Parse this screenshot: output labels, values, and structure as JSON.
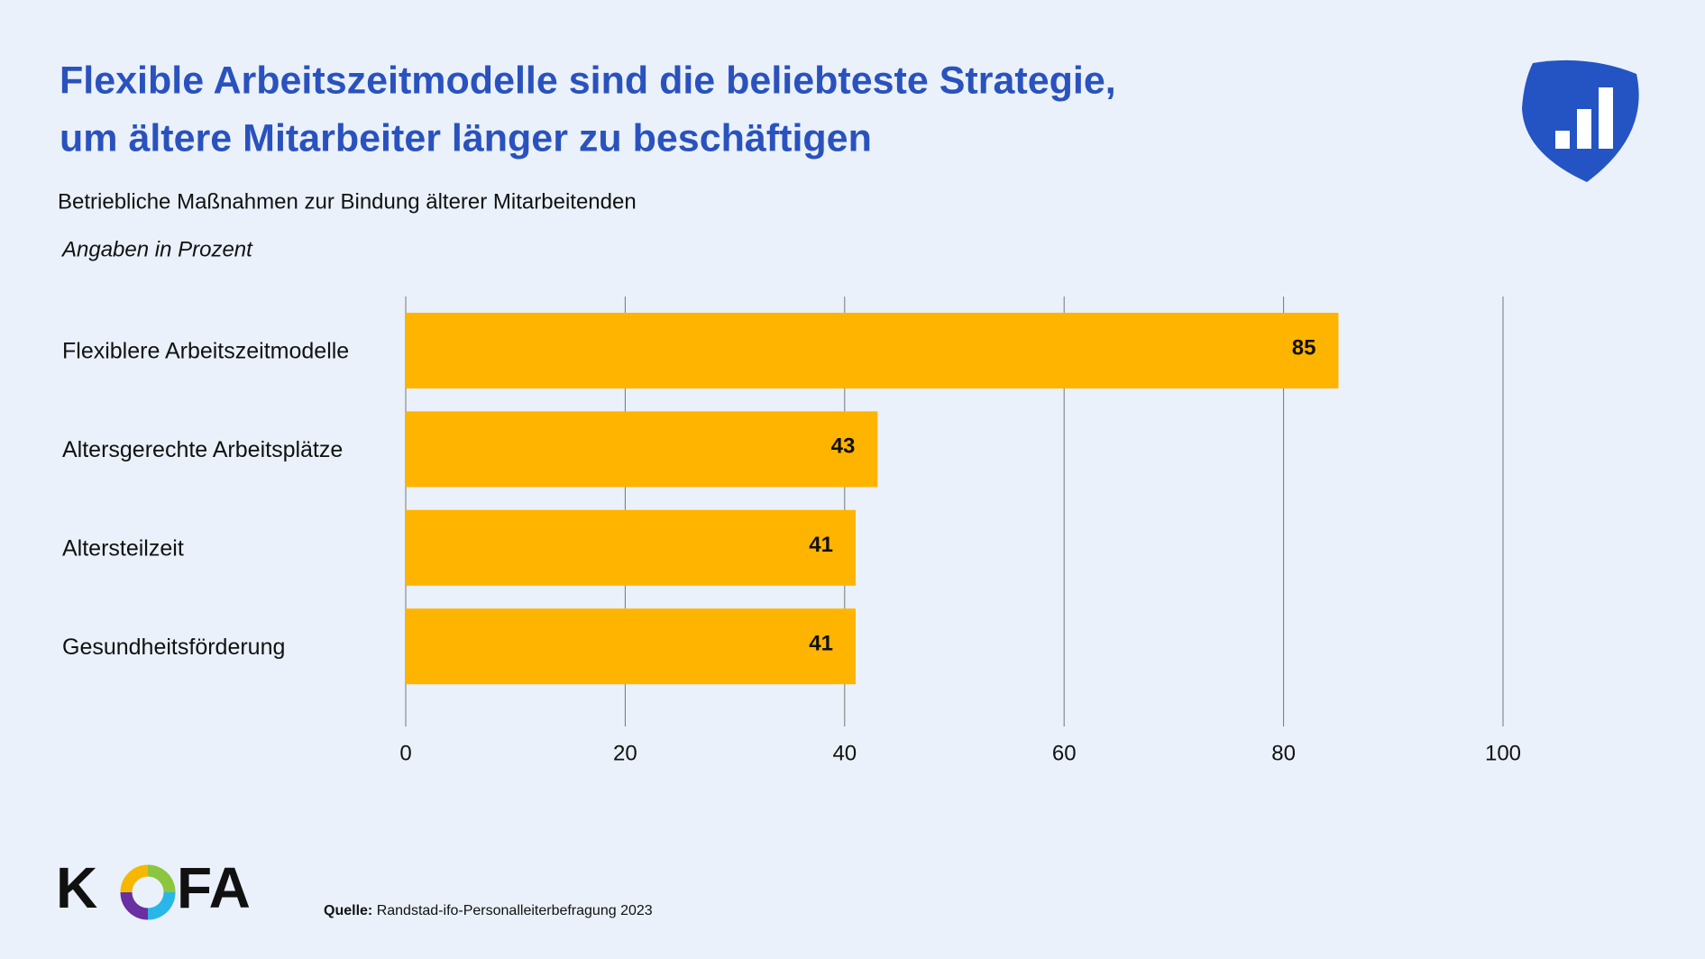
{
  "chart_data": {
    "type": "bar",
    "orientation": "horizontal",
    "title": [
      "Flexible Arbeitszeitmodelle sind die beliebteste Strategie,",
      "um ältere Mitarbeiter länger zu beschäftigen"
    ],
    "subtitle": "Betriebliche Maßnahmen zur Bindung älterer Mitarbeitenden",
    "unit_note": "Angaben in Prozent",
    "categories": [
      "Flexiblere Arbeitszeitmodelle",
      "Altersgerechte Arbeitsplätze",
      "Altersteilzeit",
      "Gesundheitsförderung"
    ],
    "values": [
      85,
      43,
      41,
      41
    ],
    "color": "#ffb400",
    "xlim": [
      0,
      100
    ],
    "xticks": [
      0,
      20,
      40,
      60,
      80,
      100
    ],
    "grid": true,
    "source_label": "Quelle:",
    "source": "Randstad-ifo-Personalleiterbefragung 2023",
    "logo": {
      "left": "K",
      "right": "FA"
    }
  }
}
